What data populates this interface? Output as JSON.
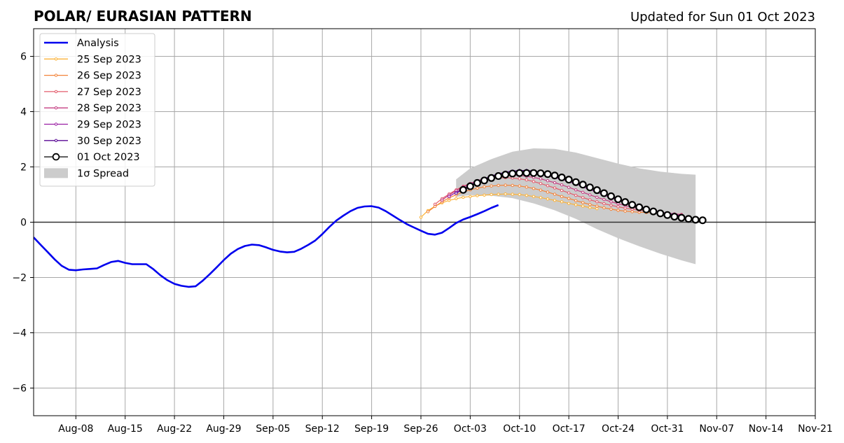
{
  "chart_data": {
    "type": "line",
    "title": "POLAR/ EURASIAN  PATTERN",
    "subtitle": "Updated for Sun 01 Oct 2023",
    "xlim": [
      "2023-08-02",
      "2023-11-21"
    ],
    "ylim": [
      -7,
      7
    ],
    "grid": true,
    "legend_position": "top-left",
    "x_ticks": [
      "2023-08-08",
      "2023-08-15",
      "2023-08-22",
      "2023-08-29",
      "2023-09-05",
      "2023-09-12",
      "2023-09-19",
      "2023-09-26",
      "2023-10-03",
      "2023-10-10",
      "2023-10-17",
      "2023-10-24",
      "2023-10-31",
      "2023-11-07",
      "2023-11-14",
      "2023-11-21"
    ],
    "x_tick_labels": [
      "Aug-08",
      "Aug-15",
      "Aug-22",
      "Aug-29",
      "Sep-05",
      "Sep-12",
      "Sep-19",
      "Sep-26",
      "Oct-03",
      "Oct-10",
      "Oct-17",
      "Oct-24",
      "Oct-31",
      "Nov-07",
      "Nov-14",
      "Nov-21"
    ],
    "y_ticks": [
      -6,
      -4,
      -2,
      0,
      2,
      4,
      6
    ],
    "y_tick_labels": [
      "−6",
      "−4",
      "−2",
      "0",
      "2",
      "4",
      "6"
    ],
    "analysis": {
      "name": "Analysis",
      "color": "#0000ee",
      "start": "2023-08-02",
      "values": [
        -0.55,
        -0.82,
        -1.08,
        -1.35,
        -1.58,
        -1.72,
        -1.74,
        -1.71,
        -1.69,
        -1.67,
        -1.55,
        -1.44,
        -1.4,
        -1.47,
        -1.52,
        -1.52,
        -1.52,
        -1.7,
        -1.92,
        -2.1,
        -2.23,
        -2.3,
        -2.34,
        -2.32,
        -2.12,
        -1.88,
        -1.63,
        -1.37,
        -1.14,
        -0.97,
        -0.86,
        -0.81,
        -0.83,
        -0.91,
        -1.0,
        -1.06,
        -1.09,
        -1.07,
        -0.96,
        -0.82,
        -0.66,
        -0.43,
        -0.17,
        0.06,
        0.24,
        0.4,
        0.52,
        0.57,
        0.58,
        0.53,
        0.4,
        0.24,
        0.08,
        -0.07,
        -0.19,
        -0.31,
        -0.42,
        -0.45,
        -0.38,
        -0.21,
        -0.03,
        0.1,
        0.19,
        0.29,
        0.4,
        0.52,
        0.62
      ]
    },
    "forecasts": [
      {
        "name": "25 Sep 2023",
        "color": "#fbb33a",
        "start": "2023-09-26",
        "values": [
          0.18,
          0.42,
          0.58,
          0.7,
          0.79,
          0.85,
          0.9,
          0.93,
          0.96,
          0.98,
          1.0,
          1.01,
          1.02,
          1.01,
          1.0,
          0.97,
          0.93,
          0.89,
          0.84,
          0.79,
          0.74,
          0.68,
          0.63,
          0.58,
          0.53,
          0.49
        ]
      },
      {
        "name": "26 Sep 2023",
        "color": "#f3843a",
        "start": "2023-09-27",
        "values": [
          0.38,
          0.57,
          0.74,
          0.88,
          0.99,
          1.09,
          1.17,
          1.23,
          1.28,
          1.31,
          1.33,
          1.34,
          1.33,
          1.31,
          1.27,
          1.22,
          1.16,
          1.09,
          1.01,
          0.93,
          0.86,
          0.78,
          0.71,
          0.64,
          0.58,
          0.52,
          0.47,
          0.43,
          0.4,
          0.38,
          0.36,
          0.35,
          0.34,
          0.34
        ]
      },
      {
        "name": "27 Sep 2023",
        "color": "#e35c6c",
        "start": "2023-09-28",
        "values": [
          0.65,
          0.85,
          1.02,
          1.17,
          1.3,
          1.4,
          1.48,
          1.54,
          1.58,
          1.6,
          1.61,
          1.6,
          1.57,
          1.53,
          1.47,
          1.4,
          1.32,
          1.24,
          1.15,
          1.06,
          0.97,
          0.89,
          0.81,
          0.74,
          0.67,
          0.61,
          0.56,
          0.51,
          0.47,
          0.43,
          0.4,
          0.37,
          0.34,
          0.32,
          0.3,
          0.28
        ]
      },
      {
        "name": "28 Sep 2023",
        "color": "#c43f82",
        "start": "2023-09-29",
        "values": [
          0.8,
          0.98,
          1.14,
          1.28,
          1.4,
          1.5,
          1.58,
          1.63,
          1.67,
          1.69,
          1.7,
          1.69,
          1.66,
          1.62,
          1.57,
          1.5,
          1.43,
          1.35,
          1.26,
          1.17,
          1.08,
          0.99,
          0.9,
          0.82,
          0.74,
          0.67,
          0.6,
          0.54,
          0.49,
          0.44,
          0.4,
          0.36,
          0.33,
          0.3,
          0.27
        ]
      },
      {
        "name": "29 Sep 2023",
        "color": "#9a1fa3",
        "start": "2023-09-30",
        "values": [
          0.93,
          1.08,
          1.22,
          1.35,
          1.47,
          1.57,
          1.66,
          1.72,
          1.77,
          1.8,
          1.81,
          1.8,
          1.78,
          1.74,
          1.69,
          1.62,
          1.55,
          1.47,
          1.38,
          1.28,
          1.18,
          1.08,
          0.98,
          0.88,
          0.79,
          0.7,
          0.62,
          0.55,
          0.48,
          0.42,
          0.37,
          0.32,
          0.28,
          0.24
        ]
      },
      {
        "name": "30 Sep 2023",
        "color": "#5a0a95",
        "start": "2023-10-01",
        "values": [
          1.05,
          1.19,
          1.33,
          1.46,
          1.57,
          1.67,
          1.75,
          1.81,
          1.85,
          1.87,
          1.87,
          1.85,
          1.82,
          1.77,
          1.71,
          1.63,
          1.55,
          1.46,
          1.36,
          1.26,
          1.16,
          1.05,
          0.95,
          0.85,
          0.75,
          0.66,
          0.58,
          0.5,
          0.43,
          0.37,
          0.31,
          0.26,
          0.22
        ]
      },
      {
        "name": "01 Oct 2023",
        "color": "#000000",
        "start": "2023-10-02",
        "values": [
          1.17,
          1.3,
          1.42,
          1.51,
          1.6,
          1.67,
          1.72,
          1.76,
          1.78,
          1.78,
          1.78,
          1.77,
          1.74,
          1.69,
          1.62,
          1.54,
          1.45,
          1.36,
          1.26,
          1.16,
          1.05,
          0.94,
          0.83,
          0.73,
          0.63,
          0.54,
          0.46,
          0.39,
          0.32,
          0.26,
          0.2,
          0.16,
          0.12,
          0.09,
          0.07
        ]
      }
    ],
    "spread": {
      "name": "1σ Spread",
      "color": "#cccccc",
      "x": [
        "2023-10-01",
        "2023-10-03",
        "2023-10-06",
        "2023-10-09",
        "2023-10-12",
        "2023-10-15",
        "2023-10-18",
        "2023-10-21",
        "2023-10-24",
        "2023-10-27",
        "2023-10-30",
        "2023-11-02",
        "2023-11-04"
      ],
      "upper": [
        1.55,
        1.95,
        2.28,
        2.55,
        2.67,
        2.65,
        2.52,
        2.32,
        2.12,
        1.95,
        1.83,
        1.75,
        1.72
      ],
      "lower": [
        0.92,
        0.98,
        0.96,
        0.87,
        0.68,
        0.43,
        0.12,
        -0.25,
        -0.58,
        -0.87,
        -1.14,
        -1.38,
        -1.52
      ]
    }
  }
}
